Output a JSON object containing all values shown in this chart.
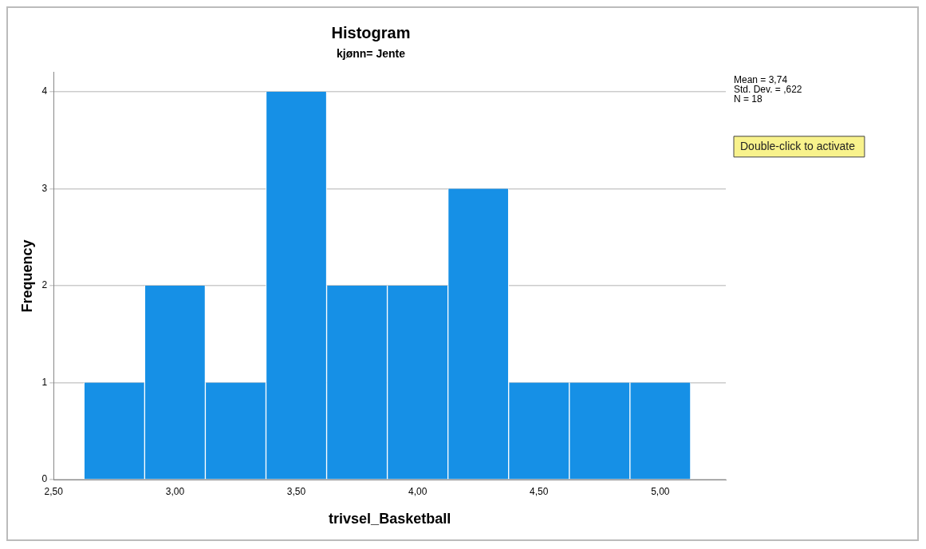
{
  "chart_data": {
    "type": "histogram",
    "title": "Histogram",
    "subtitle": "kjønn= Jente",
    "xlabel": "trivsel_Basketball",
    "ylabel": "Frequency",
    "bins": [
      2.625,
      2.875,
      3.125,
      3.375,
      3.625,
      3.875,
      4.125,
      4.375,
      4.625,
      4.875,
      5.125
    ],
    "values": [
      1,
      2,
      1,
      4,
      2,
      2,
      3,
      1,
      1,
      1
    ],
    "color": "#1690e6",
    "xlim": [
      2.5,
      5.27
    ],
    "xticks": [
      {
        "value": 2.5,
        "label": "2,50"
      },
      {
        "value": 3,
        "label": "3,00"
      },
      {
        "value": 3.5,
        "label": "3,50"
      },
      {
        "value": 4,
        "label": "4,00"
      },
      {
        "value": 4.5,
        "label": "4,50"
      },
      {
        "value": 5,
        "label": "5,00"
      }
    ],
    "ylim": [
      0,
      4.2
    ],
    "yticks": [
      0,
      1,
      2,
      3,
      4
    ],
    "grid": "y",
    "legend": false,
    "annotations": [
      "Mean = 3,74",
      "Std. Dev. = ,622",
      "N = 18",
      "Double-click to activate"
    ]
  }
}
